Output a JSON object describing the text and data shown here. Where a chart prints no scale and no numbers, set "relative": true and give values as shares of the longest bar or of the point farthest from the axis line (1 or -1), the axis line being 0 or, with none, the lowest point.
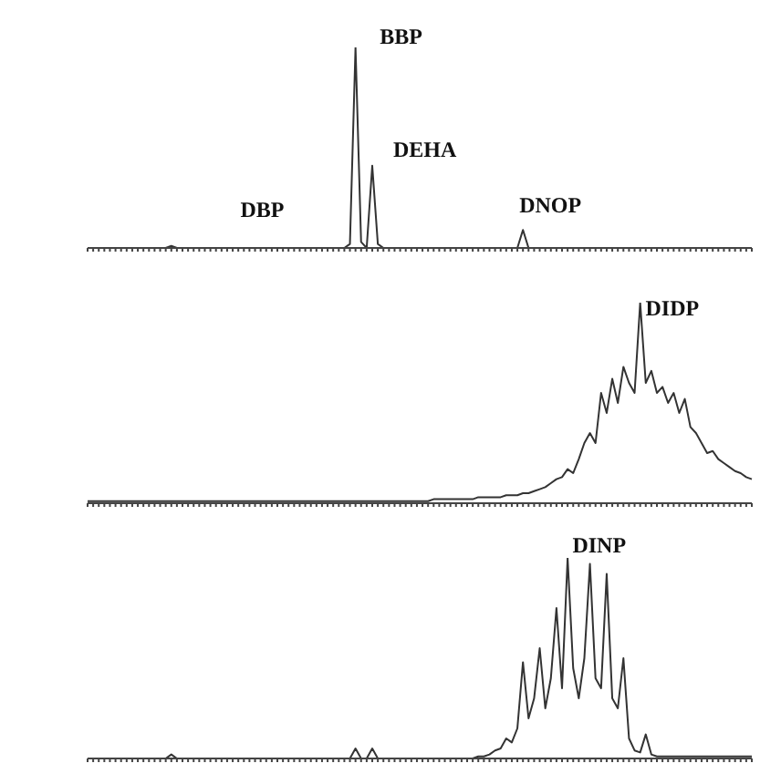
{
  "chart_data": [
    {
      "type": "line",
      "relative": true,
      "color": "#333333",
      "marker": "none",
      "grid": false,
      "legend": false,
      "categories": [
        null,
        null,
        null,
        null,
        null,
        null,
        null,
        null,
        null,
        null,
        null,
        null,
        null,
        null,
        null,
        null,
        null,
        null,
        null,
        null,
        null,
        null,
        null,
        null,
        null,
        null,
        null,
        null,
        null,
        null,
        null,
        null,
        null,
        null,
        null,
        null,
        null,
        null,
        null,
        null,
        null,
        null,
        null,
        null,
        null,
        null,
        null,
        null,
        null,
        null,
        null,
        null,
        null,
        null,
        null,
        null,
        null,
        null,
        null,
        null,
        null,
        null,
        null,
        null,
        null,
        null,
        null,
        null,
        null,
        null,
        null,
        null,
        null,
        null,
        null,
        null,
        null,
        null,
        null,
        null,
        null,
        null,
        null,
        null,
        null,
        null,
        null,
        null,
        null,
        null,
        null,
        null,
        null,
        null,
        null,
        null,
        null,
        null,
        null,
        null,
        null,
        null,
        null,
        null,
        null,
        null,
        null,
        null,
        null,
        null,
        null,
        null,
        null,
        null,
        null,
        null,
        null,
        null,
        null,
        null
      ],
      "values": [
        0,
        0,
        0,
        0,
        0,
        0,
        0,
        0,
        0,
        0,
        0,
        0,
        0,
        0,
        0,
        0.01,
        0,
        0,
        0,
        0,
        0,
        0,
        0,
        0,
        0,
        0,
        0,
        0,
        0,
        0,
        0,
        0,
        0,
        0,
        0,
        0,
        0,
        0,
        0,
        0,
        0,
        0,
        0,
        0,
        0,
        0,
        0,
        0.02,
        1,
        0.03,
        0,
        0.41,
        0.02,
        0,
        0,
        0,
        0,
        0,
        0,
        0,
        0,
        0,
        0,
        0,
        0,
        0,
        0,
        0,
        0,
        0,
        0,
        0,
        0,
        0,
        0,
        0,
        0,
        0,
        0.09,
        0,
        0,
        0,
        0,
        0,
        0,
        0,
        0,
        0,
        0,
        0,
        0,
        0,
        0,
        0,
        0,
        0,
        0,
        0,
        0,
        0,
        0,
        0,
        0,
        0,
        0,
        0,
        0,
        0,
        0,
        0,
        0,
        0,
        0,
        0,
        0,
        0,
        0,
        0,
        0,
        0
      ],
      "annotations": [
        "DBP",
        "BBP",
        "DEHA",
        "DNOP"
      ]
    },
    {
      "type": "line",
      "relative": true,
      "color": "#333333",
      "marker": "none",
      "grid": false,
      "legend": false,
      "categories": [
        null,
        null,
        null,
        null,
        null,
        null,
        null,
        null,
        null,
        null,
        null,
        null,
        null,
        null,
        null,
        null,
        null,
        null,
        null,
        null,
        null,
        null,
        null,
        null,
        null,
        null,
        null,
        null,
        null,
        null,
        null,
        null,
        null,
        null,
        null,
        null,
        null,
        null,
        null,
        null,
        null,
        null,
        null,
        null,
        null,
        null,
        null,
        null,
        null,
        null,
        null,
        null,
        null,
        null,
        null,
        null,
        null,
        null,
        null,
        null,
        null,
        null,
        null,
        null,
        null,
        null,
        null,
        null,
        null,
        null,
        null,
        null,
        null,
        null,
        null,
        null,
        null,
        null,
        null,
        null,
        null,
        null,
        null,
        null,
        null,
        null,
        null,
        null,
        null,
        null,
        null,
        null,
        null,
        null,
        null,
        null,
        null,
        null,
        null,
        null,
        null,
        null,
        null,
        null,
        null,
        null,
        null,
        null,
        null,
        null,
        null,
        null,
        null,
        null,
        null,
        null,
        null,
        null,
        null,
        null
      ],
      "values": [
        0.01,
        0.01,
        0.01,
        0.01,
        0.01,
        0.01,
        0.01,
        0.01,
        0.01,
        0.01,
        0.01,
        0.01,
        0.01,
        0.01,
        0.01,
        0.01,
        0.01,
        0.01,
        0.01,
        0.01,
        0.01,
        0.01,
        0.01,
        0.01,
        0.01,
        0.01,
        0.01,
        0.01,
        0.01,
        0.01,
        0.01,
        0.01,
        0.01,
        0.01,
        0.01,
        0.01,
        0.01,
        0.01,
        0.01,
        0.01,
        0.01,
        0.01,
        0.01,
        0.01,
        0.01,
        0.01,
        0.01,
        0.01,
        0.01,
        0.01,
        0.01,
        0.01,
        0.01,
        0.01,
        0.01,
        0.01,
        0.01,
        0.01,
        0.01,
        0.01,
        0.01,
        0.01,
        0.02,
        0.02,
        0.02,
        0.02,
        0.02,
        0.02,
        0.02,
        0.02,
        0.03,
        0.03,
        0.03,
        0.03,
        0.03,
        0.04,
        0.04,
        0.04,
        0.05,
        0.05,
        0.06,
        0.07,
        0.08,
        0.1,
        0.12,
        0.13,
        0.17,
        0.15,
        0.22,
        0.3,
        0.35,
        0.3,
        0.55,
        0.45,
        0.62,
        0.5,
        0.68,
        0.6,
        0.55,
        1,
        0.6,
        0.66,
        0.55,
        0.58,
        0.5,
        0.55,
        0.45,
        0.52,
        0.38,
        0.35,
        0.3,
        0.25,
        0.26,
        0.22,
        0.2,
        0.18,
        0.16,
        0.15,
        0.13,
        0.12
      ],
      "annotations": [
        "DIDP"
      ]
    },
    {
      "type": "line",
      "relative": true,
      "color": "#333333",
      "marker": "none",
      "grid": false,
      "legend": false,
      "categories": [
        null,
        null,
        null,
        null,
        null,
        null,
        null,
        null,
        null,
        null,
        null,
        null,
        null,
        null,
        null,
        null,
        null,
        null,
        null,
        null,
        null,
        null,
        null,
        null,
        null,
        null,
        null,
        null,
        null,
        null,
        null,
        null,
        null,
        null,
        null,
        null,
        null,
        null,
        null,
        null,
        null,
        null,
        null,
        null,
        null,
        null,
        null,
        null,
        null,
        null,
        null,
        null,
        null,
        null,
        null,
        null,
        null,
        null,
        null,
        null,
        null,
        null,
        null,
        null,
        null,
        null,
        null,
        null,
        null,
        null,
        null,
        null,
        null,
        null,
        null,
        null,
        null,
        null,
        null,
        null,
        null,
        null,
        null,
        null,
        null,
        null,
        null,
        null,
        null,
        null,
        null,
        null,
        null,
        null,
        null,
        null,
        null,
        null,
        null,
        null,
        null,
        null,
        null,
        null,
        null,
        null,
        null,
        null,
        null,
        null,
        null,
        null,
        null,
        null,
        null,
        null,
        null,
        null,
        null,
        null
      ],
      "values": [
        0,
        0,
        0,
        0,
        0,
        0,
        0,
        0,
        0,
        0,
        0,
        0,
        0,
        0,
        0,
        0.02,
        0,
        0,
        0,
        0,
        0,
        0,
        0,
        0,
        0,
        0,
        0,
        0,
        0,
        0,
        0,
        0,
        0,
        0,
        0,
        0,
        0,
        0,
        0,
        0,
        0,
        0,
        0,
        0,
        0,
        0,
        0,
        0,
        0.05,
        0,
        0,
        0.05,
        0,
        0,
        0,
        0,
        0,
        0,
        0,
        0,
        0,
        0,
        0,
        0,
        0,
        0,
        0,
        0,
        0,
        0,
        0.01,
        0.01,
        0.02,
        0.04,
        0.05,
        0.1,
        0.08,
        0.15,
        0.48,
        0.2,
        0.3,
        0.55,
        0.25,
        0.4,
        0.75,
        0.35,
        1,
        0.45,
        0.3,
        0.5,
        0.97,
        0.4,
        0.35,
        0.92,
        0.3,
        0.25,
        0.5,
        0.1,
        0.04,
        0.03,
        0.12,
        0.02,
        0.01,
        0.01,
        0.01,
        0.01,
        0.01,
        0.01,
        0.01,
        0.01,
        0.01,
        0.01,
        0.01,
        0.01,
        0.01,
        0.01,
        0.01,
        0.01,
        0.01,
        0.01
      ],
      "annotations": [
        "DINP"
      ]
    }
  ]
}
